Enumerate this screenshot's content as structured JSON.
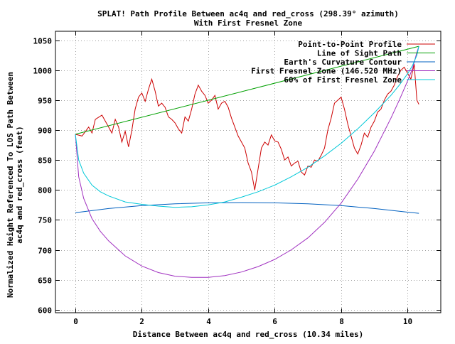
{
  "chart_data": {
    "type": "line",
    "title": "SPLAT! Path Profile Between ac4q and red_cross (298.39° azimuth)",
    "subtitle": "With First Fresnel Zone",
    "xlabel": "Distance Between ac4q and red_cross (10.34 miles)",
    "ylabel": "Normalized Height Referenced To LOS Path Between ac4q and red_cross (feet)",
    "ylabel_lines": [
      "Normalized Height Referenced To LOS Path Between",
      "ac4q and red_cross (feet)"
    ],
    "xlim": [
      -0.6,
      11.0
    ],
    "ylim": [
      595,
      1065
    ],
    "xticks": [
      0,
      2,
      4,
      6,
      8,
      10
    ],
    "yticks": [
      600,
      650,
      700,
      750,
      800,
      850,
      900,
      950,
      1000,
      1050
    ],
    "grid": true,
    "legend_position": "top-right",
    "series": [
      {
        "name": "Point-to-Point Profile",
        "color": "#cc0000",
        "x": [
          0,
          0.2,
          0.4,
          0.5,
          0.6,
          0.8,
          0.9,
          1.0,
          1.1,
          1.2,
          1.3,
          1.4,
          1.5,
          1.6,
          1.7,
          1.8,
          1.9,
          2.0,
          2.1,
          2.2,
          2.3,
          2.4,
          2.5,
          2.6,
          2.7,
          2.8,
          2.9,
          3.0,
          3.1,
          3.2,
          3.3,
          3.4,
          3.5,
          3.6,
          3.7,
          3.8,
          3.9,
          4.0,
          4.1,
          4.2,
          4.3,
          4.4,
          4.5,
          4.6,
          4.7,
          4.8,
          4.9,
          5.0,
          5.1,
          5.2,
          5.3,
          5.4,
          5.5,
          5.6,
          5.7,
          5.8,
          5.9,
          6.0,
          6.1,
          6.2,
          6.3,
          6.4,
          6.5,
          6.6,
          6.7,
          6.8,
          6.9,
          7.0,
          7.1,
          7.2,
          7.3,
          7.4,
          7.5,
          7.6,
          7.7,
          7.8,
          7.9,
          8.0,
          8.1,
          8.2,
          8.3,
          8.4,
          8.5,
          8.6,
          8.7,
          8.8,
          8.9,
          9.0,
          9.1,
          9.2,
          9.3,
          9.4,
          9.5,
          9.6,
          9.7,
          9.8,
          9.9,
          10.0,
          10.1,
          10.2,
          10.28,
          10.34
        ],
        "values": [
          893,
          890,
          905,
          895,
          918,
          925,
          915,
          905,
          895,
          918,
          905,
          880,
          898,
          872,
          900,
          935,
          955,
          962,
          948,
          968,
          985,
          965,
          940,
          945,
          938,
          922,
          918,
          912,
          902,
          895,
          922,
          915,
          935,
          960,
          975,
          965,
          958,
          945,
          950,
          958,
          935,
          945,
          948,
          938,
          920,
          905,
          890,
          880,
          870,
          845,
          830,
          800,
          835,
          870,
          880,
          875,
          892,
          882,
          880,
          868,
          850,
          855,
          840,
          845,
          848,
          830,
          825,
          840,
          838,
          850,
          848,
          858,
          870,
          900,
          920,
          945,
          950,
          955,
          935,
          910,
          890,
          870,
          860,
          875,
          895,
          888,
          905,
          915,
          930,
          935,
          950,
          960,
          965,
          975,
          990,
          1000,
          1005,
          995,
          985,
          1010,
          950,
          943
        ]
      },
      {
        "name": "Line of Sight Path",
        "color": "#00a000",
        "x": [
          0,
          10.34
        ],
        "values": [
          893,
          1040
        ]
      },
      {
        "name": "Earth's Curvature Contour",
        "color": "#0060c0",
        "x": [
          0,
          1,
          2,
          3,
          4,
          5,
          6,
          7,
          8,
          9,
          10,
          10.34
        ],
        "values": [
          762,
          769,
          774,
          777,
          778.5,
          779,
          778.5,
          777,
          774,
          769,
          763,
          761
        ]
      },
      {
        "name": "First Fresnel Zone (146.520 MHz)",
        "color": "#a030c0",
        "x": [
          0,
          0.1,
          0.25,
          0.5,
          0.75,
          1,
          1.5,
          2,
          2.5,
          3,
          3.5,
          4,
          4.5,
          5,
          5.5,
          6,
          6.5,
          7,
          7.5,
          8,
          8.5,
          9,
          9.5,
          9.75,
          10,
          10.15,
          10.28,
          10.34
        ],
        "values": [
          893,
          822,
          786,
          752,
          731,
          715,
          690,
          673,
          662,
          656,
          654,
          654,
          657,
          663,
          672,
          684,
          700,
          720,
          746,
          778,
          818,
          865,
          920,
          950,
          982,
          1003,
          1030,
          1040
        ]
      },
      {
        "name": "60% of First Fresnel Zone",
        "color": "#00c8d8",
        "x": [
          0,
          0.1,
          0.25,
          0.5,
          0.75,
          1,
          1.5,
          2,
          2.5,
          3,
          3.5,
          4,
          4.5,
          5,
          5.5,
          6,
          6.5,
          7,
          7.5,
          8,
          8.5,
          9,
          9.5,
          9.75,
          10,
          10.15,
          10.28,
          10.34
        ],
        "values": [
          893,
          850,
          828,
          808,
          797,
          790,
          780,
          776,
          773,
          771,
          772,
          775,
          780,
          788,
          797,
          808,
          822,
          838,
          857,
          878,
          902,
          929,
          958,
          975,
          994,
          1008,
          1025,
          1040
        ]
      }
    ]
  }
}
